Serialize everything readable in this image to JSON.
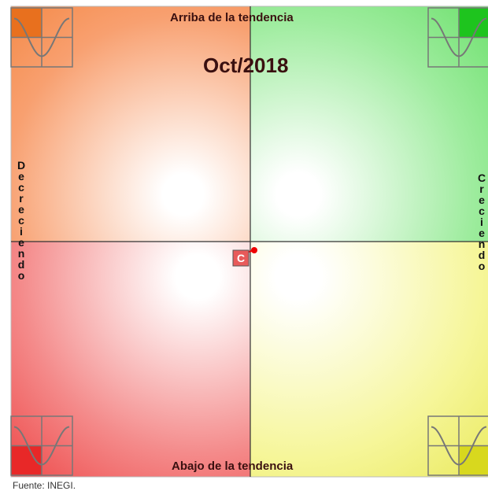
{
  "title": "Oct/2018",
  "top_label": "Arriba de la tendencia",
  "bottom_label": "Abajo de la tendencia",
  "left_label": "Decreciendo",
  "right_label": "Creciendo",
  "marker_label": "C",
  "source": "Fuente: INEGI."
}
